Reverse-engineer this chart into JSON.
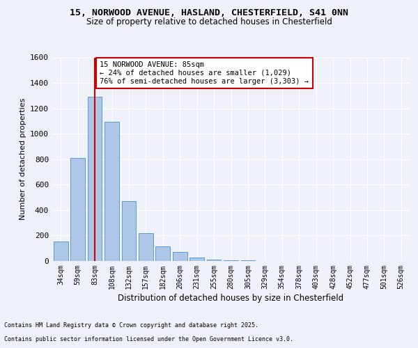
{
  "title_line1": "15, NORWOOD AVENUE, HASLAND, CHESTERFIELD, S41 0NN",
  "title_line2": "Size of property relative to detached houses in Chesterfield",
  "xlabel": "Distribution of detached houses by size in Chesterfield",
  "ylabel": "Number of detached properties",
  "footer_line1": "Contains HM Land Registry data © Crown copyright and database right 2025.",
  "footer_line2": "Contains public sector information licensed under the Open Government Licence v3.0.",
  "categories": [
    "34sqm",
    "59sqm",
    "83sqm",
    "108sqm",
    "132sqm",
    "157sqm",
    "182sqm",
    "206sqm",
    "231sqm",
    "255sqm",
    "280sqm",
    "305sqm",
    "329sqm",
    "354sqm",
    "378sqm",
    "403sqm",
    "428sqm",
    "452sqm",
    "477sqm",
    "501sqm",
    "526sqm"
  ],
  "values": [
    155,
    810,
    1290,
    1095,
    470,
    220,
    115,
    70,
    30,
    10,
    5,
    3,
    2,
    2,
    1,
    1,
    1,
    0,
    0,
    0,
    0
  ],
  "bar_color": "#aec6e8",
  "bar_edge_color": "#5b9bd5",
  "property_bin_index": 2,
  "annotation_title": "15 NORWOOD AVENUE: 85sqm",
  "annotation_line1": "← 24% of detached houses are smaller (1,029)",
  "annotation_line2": "76% of semi-detached houses are larger (3,303) →",
  "vline_color": "#cc0000",
  "annotation_box_color": "#cc0000",
  "ylim": [
    0,
    1600
  ],
  "yticks": [
    0,
    200,
    400,
    600,
    800,
    1000,
    1200,
    1400,
    1600
  ],
  "background_color": "#eef2f8",
  "grid_color": "#ffffff"
}
